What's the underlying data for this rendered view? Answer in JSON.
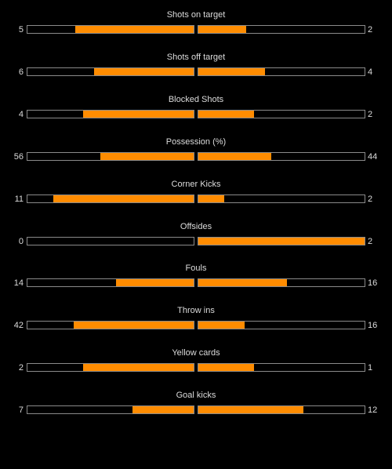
{
  "colors": {
    "background": "#000000",
    "bar_fill": "#ff8c00",
    "bar_border": "#8a8a8a",
    "text": "#dcdcdc"
  },
  "stats": [
    {
      "label": "Shots on target",
      "home": "5",
      "away": "2",
      "home_share": 0.714,
      "away_share": 0.286
    },
    {
      "label": "Shots off target",
      "home": "6",
      "away": "4",
      "home_share": 0.6,
      "away_share": 0.4
    },
    {
      "label": "Blocked Shots",
      "home": "4",
      "away": "2",
      "home_share": 0.667,
      "away_share": 0.333
    },
    {
      "label": "Possession (%)",
      "home": "56",
      "away": "44",
      "home_share": 0.56,
      "away_share": 0.44
    },
    {
      "label": "Corner Kicks",
      "home": "11",
      "away": "2",
      "home_share": 0.846,
      "away_share": 0.154
    },
    {
      "label": "Offsides",
      "home": "0",
      "away": "2",
      "home_share": 0.0,
      "away_share": 1.0
    },
    {
      "label": "Fouls",
      "home": "14",
      "away": "16",
      "home_share": 0.467,
      "away_share": 0.533
    },
    {
      "label": "Throw ins",
      "home": "42",
      "away": "16",
      "home_share": 0.724,
      "away_share": 0.276
    },
    {
      "label": "Yellow cards",
      "home": "2",
      "away": "1",
      "home_share": 0.667,
      "away_share": 0.333
    },
    {
      "label": "Goal kicks",
      "home": "7",
      "away": "12",
      "home_share": 0.368,
      "away_share": 0.632
    }
  ]
}
